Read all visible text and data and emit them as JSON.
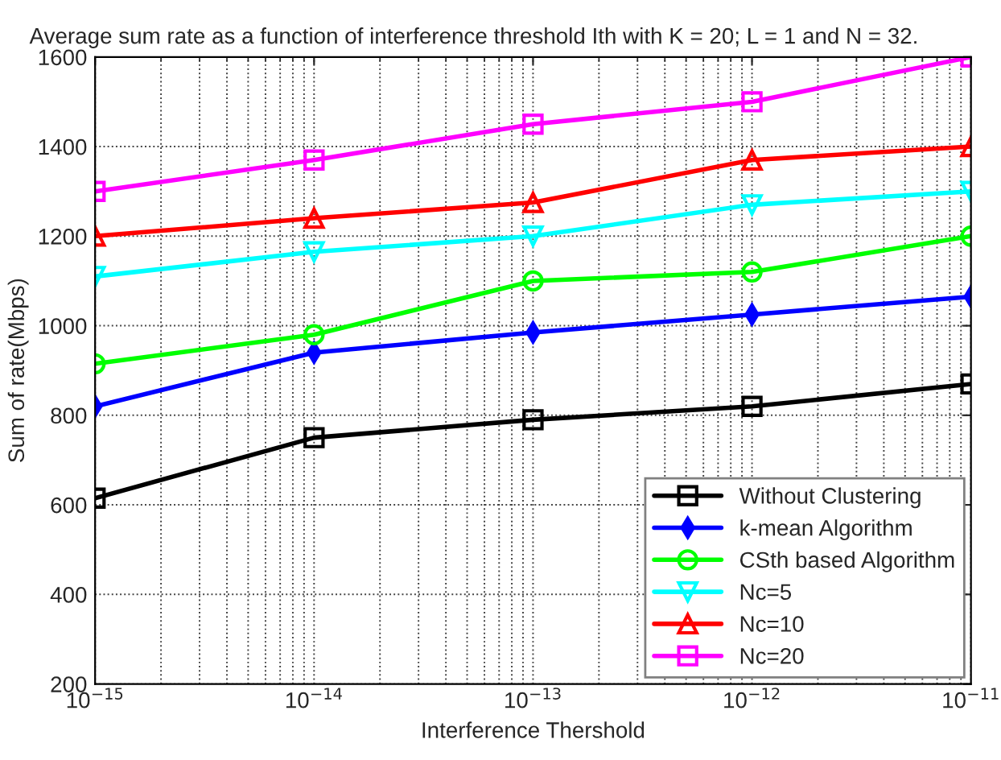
{
  "chart_data": {
    "type": "line",
    "title": "Average sum rate as a function of interference threshold Ith with K = 20; L = 1 and N = 32.",
    "xlabel": "Interference Thershold",
    "ylabel": "Sum of rate(Mbps)",
    "x": [
      1e-15,
      1e-14,
      1e-13,
      1e-12,
      1e-11
    ],
    "series": [
      {
        "name": "Without Clustering",
        "color": "#000000",
        "marker": "square",
        "values": [
          615,
          750,
          790,
          820,
          870
        ]
      },
      {
        "name": "k-mean Algorithm",
        "color": "#0000ff",
        "marker": "diamond",
        "values": [
          820,
          940,
          985,
          1025,
          1065
        ]
      },
      {
        "name": "CSth based Algorithm",
        "color": "#00ff00",
        "marker": "circle",
        "values": [
          915,
          980,
          1100,
          1120,
          1200
        ]
      },
      {
        "name": "Nc=5",
        "color": "#00ffff",
        "marker": "triangle_down",
        "values": [
          1110,
          1165,
          1200,
          1270,
          1300
        ]
      },
      {
        "name": "Nc=10",
        "color": "#ff0000",
        "marker": "triangle",
        "values": [
          1200,
          1240,
          1275,
          1370,
          1400
        ]
      },
      {
        "name": "Nc=20",
        "color": "#ff00ff",
        "marker": "square",
        "values": [
          1300,
          1370,
          1450,
          1500,
          1600
        ]
      }
    ],
    "log": "x",
    "xlim": [
      1e-15,
      1e-11
    ],
    "xticks": [
      {
        "value": 1e-15,
        "label": "10$^{−15}$"
      },
      {
        "value": 1e-14,
        "label": "10$^{−14}$"
      },
      {
        "value": 1e-13,
        "label": "10$^{−13}$"
      },
      {
        "value": 1e-12,
        "label": "10$^{−12}$"
      },
      {
        "value": 1e-11,
        "label": "10$^{−11}$"
      }
    ],
    "ylim": [
      200,
      1600
    ],
    "yticks": [
      200,
      400,
      600,
      800,
      1000,
      1200,
      1400,
      1600
    ],
    "grid": true,
    "legend": "bottom right",
    "line_style": "solid"
  }
}
